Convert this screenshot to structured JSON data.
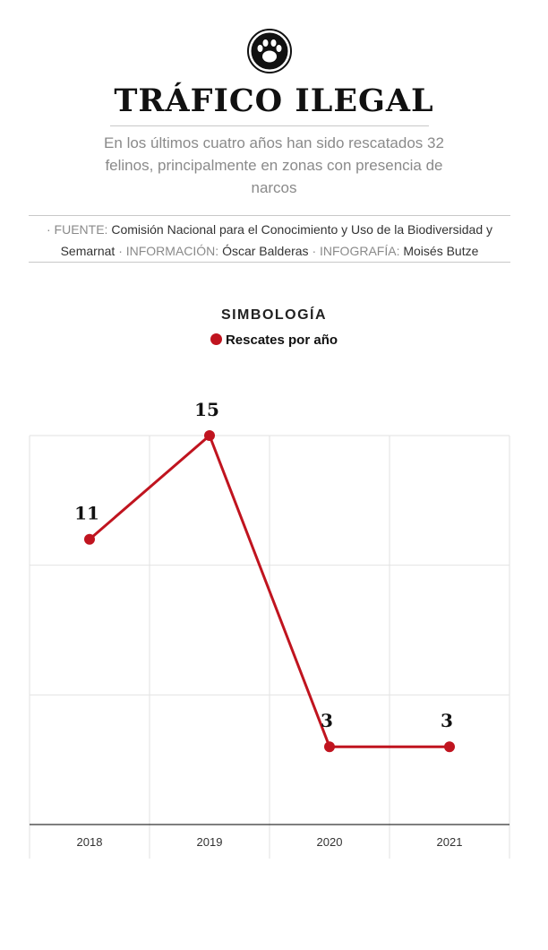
{
  "header": {
    "title": "TRÁFICO ILEGAL",
    "subtitle": "En los últimos cuatro años han sido rescatados 32 felinos, principalmente en zonas con presencia de narcos",
    "icon": "paw-icon"
  },
  "credits": {
    "source_label": "· FUENTE:",
    "source_value": "Comisión Nacional para el Conocimiento y Uso de la Biodiversidad y Semarnat",
    "info_label": "· INFORMACIÓN:",
    "info_value": "Óscar Balderas",
    "graphic_label": "· INFOGRAFÍA:",
    "graphic_value": "Moisés Butze"
  },
  "legend": {
    "title": "SIMBOLOGÍA",
    "item": "Rescates por año"
  },
  "colors": {
    "accent": "#c0141f",
    "grid": "#e2e2e2"
  },
  "chart_data": {
    "type": "line",
    "title": "",
    "xlabel": "",
    "ylabel": "",
    "categories": [
      "2018",
      "2019",
      "2020",
      "2021"
    ],
    "series": [
      {
        "name": "Rescates por año",
        "values": [
          11,
          15,
          3,
          3
        ]
      }
    ],
    "data_labels": [
      "11",
      "15",
      "3",
      "3"
    ],
    "ylim": [
      0,
      15
    ],
    "grid": true
  }
}
